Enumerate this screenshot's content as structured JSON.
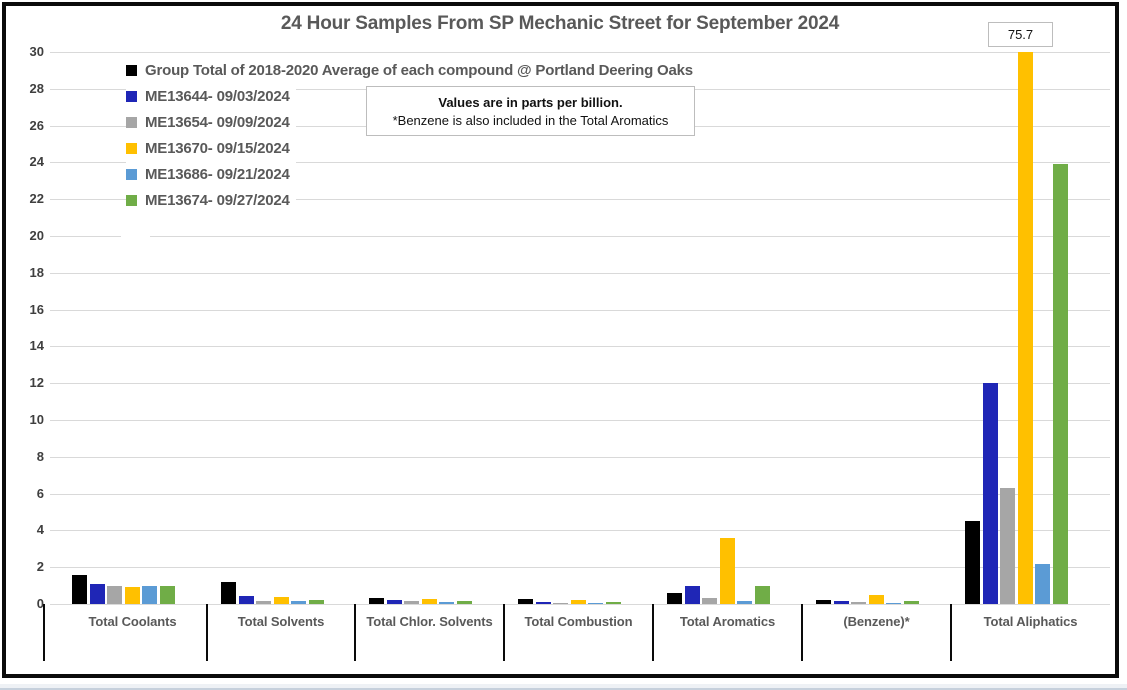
{
  "chart_data": {
    "type": "bar",
    "title": "24 Hour Samples From SP Mechanic Street for September 2024",
    "value_unit": "parts per billion",
    "categories": [
      "Total Coolants",
      "Total Solvents",
      "Total Chlor. Solvents",
      "Total Combustion",
      "Total Aromatics",
      "(Benzene)*",
      "Total Aliphatics"
    ],
    "series": [
      {
        "name": "Group Total of 2018-2020 Average of each compound @ Portland Deering Oaks",
        "color": "#000000",
        "values": [
          1.6,
          1.2,
          0.35,
          0.3,
          0.6,
          0.2,
          4.5
        ]
      },
      {
        "name": "ME13644- 09/03/2024",
        "color": "#1f26b6",
        "values": [
          1.1,
          0.45,
          0.2,
          0.1,
          1.0,
          0.15,
          12.0
        ]
      },
      {
        "name": "ME13654- 09/09/2024",
        "color": "#a6a6a6",
        "values": [
          1.0,
          0.15,
          0.15,
          0.05,
          0.35,
          0.1,
          6.3
        ]
      },
      {
        "name": "ME13670- 09/15/2024",
        "color": "#ffc000",
        "values": [
          0.95,
          0.4,
          0.25,
          0.2,
          3.6,
          0.5,
          75.7
        ]
      },
      {
        "name": "ME13686- 09/21/2024",
        "color": "#5b9bd5",
        "values": [
          1.0,
          0.15,
          0.12,
          0.05,
          0.15,
          0.05,
          2.2
        ]
      },
      {
        "name": "ME13674- 09/27/2024",
        "color": "#70ad47",
        "values": [
          1.0,
          0.2,
          0.15,
          0.1,
          1.0,
          0.15,
          23.9
        ]
      }
    ],
    "ylim": [
      0,
      30
    ],
    "ytick_step": 2,
    "grid": true,
    "legend_position": "top-left-inside",
    "data_labels": [
      {
        "series_index": 3,
        "category_index": 6,
        "text": "75.7"
      }
    ],
    "note": {
      "line1": "Values are in parts per billion.",
      "line2": "*Benzene is also included in the Total Aromatics"
    }
  }
}
